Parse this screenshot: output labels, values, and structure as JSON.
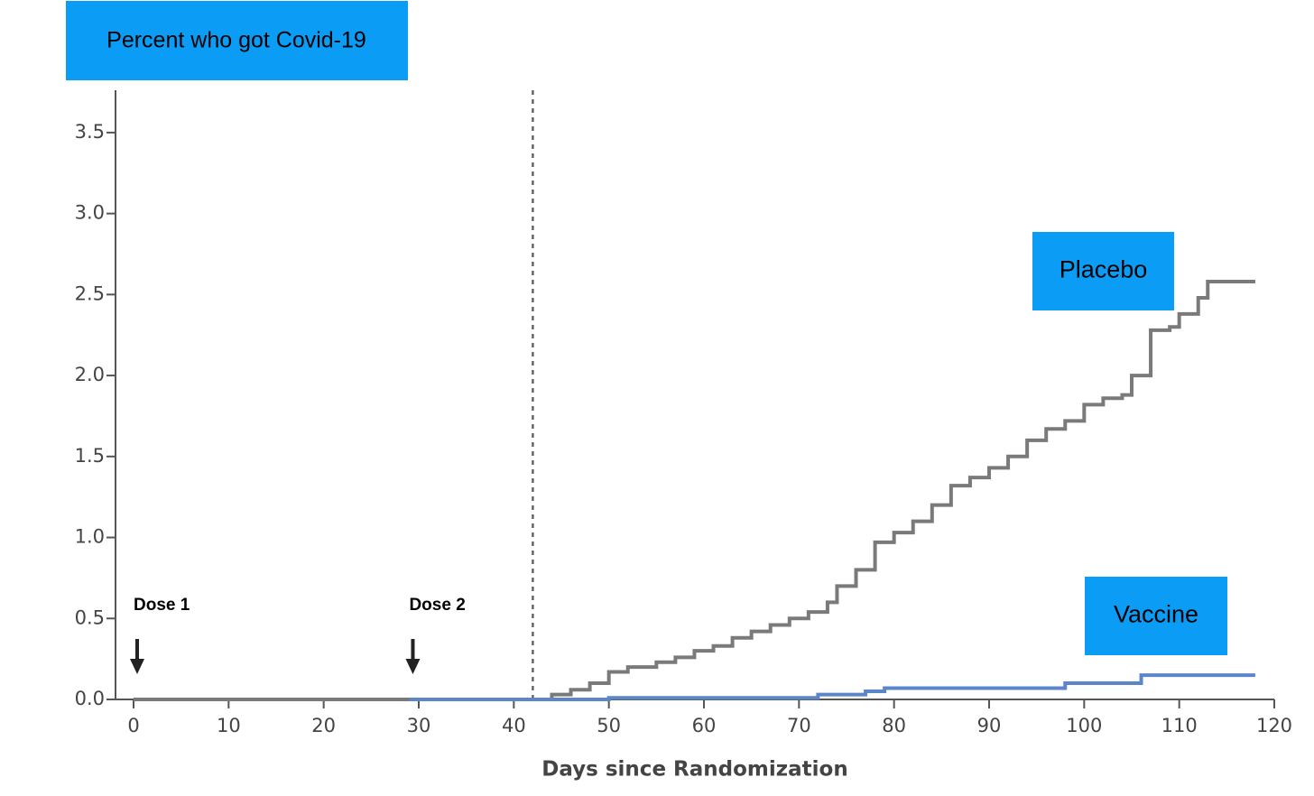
{
  "chart_data": {
    "type": "step",
    "title": "Percent who got Covid-19",
    "x_label": "Days since Randomization",
    "xlim": [
      -1,
      120
    ],
    "ylim": [
      0,
      3.7
    ],
    "xticks": [
      0,
      10,
      20,
      30,
      40,
      50,
      60,
      70,
      80,
      90,
      100,
      110,
      120
    ],
    "yticks": [
      {
        "value": 0,
        "label": "0.0"
      },
      0.5,
      {
        "value": 1,
        "label": "1.0"
      },
      1.5,
      {
        "value": 2,
        "label": "2.0"
      },
      2.5,
      {
        "value": 3,
        "label": "3.0"
      },
      3.5
    ],
    "vline_x": 42,
    "annotations": [
      {
        "text": "Dose 1",
        "x": 0
      },
      {
        "text": "Dose 2",
        "x": 29
      }
    ],
    "series": [
      {
        "name": "Placebo",
        "color": "#7a7a7a",
        "x": [
          0,
          42,
          44,
          46,
          48,
          50,
          52,
          55,
          57,
          59,
          61,
          63,
          65,
          67,
          69,
          71,
          73,
          74,
          76,
          78,
          80,
          82,
          84,
          86,
          88,
          90,
          92,
          94,
          96,
          98,
          100,
          102,
          104,
          105,
          107,
          109,
          110,
          112,
          113,
          118
        ],
        "values": [
          0,
          0,
          0.03,
          0.06,
          0.1,
          0.17,
          0.2,
          0.23,
          0.26,
          0.3,
          0.33,
          0.38,
          0.42,
          0.46,
          0.5,
          0.54,
          0.6,
          0.7,
          0.8,
          0.97,
          1.03,
          1.1,
          1.2,
          1.32,
          1.37,
          1.43,
          1.5,
          1.6,
          1.67,
          1.72,
          1.82,
          1.86,
          1.88,
          2.0,
          2.28,
          2.3,
          2.38,
          2.48,
          2.58,
          2.58
        ]
      },
      {
        "name": "Vaccine",
        "color": "#5b86c8",
        "x": [
          29,
          50,
          72,
          77,
          79,
          98,
          106,
          118
        ],
        "values": [
          0,
          0.01,
          0.03,
          0.05,
          0.07,
          0.1,
          0.15,
          0.15
        ]
      }
    ]
  }
}
